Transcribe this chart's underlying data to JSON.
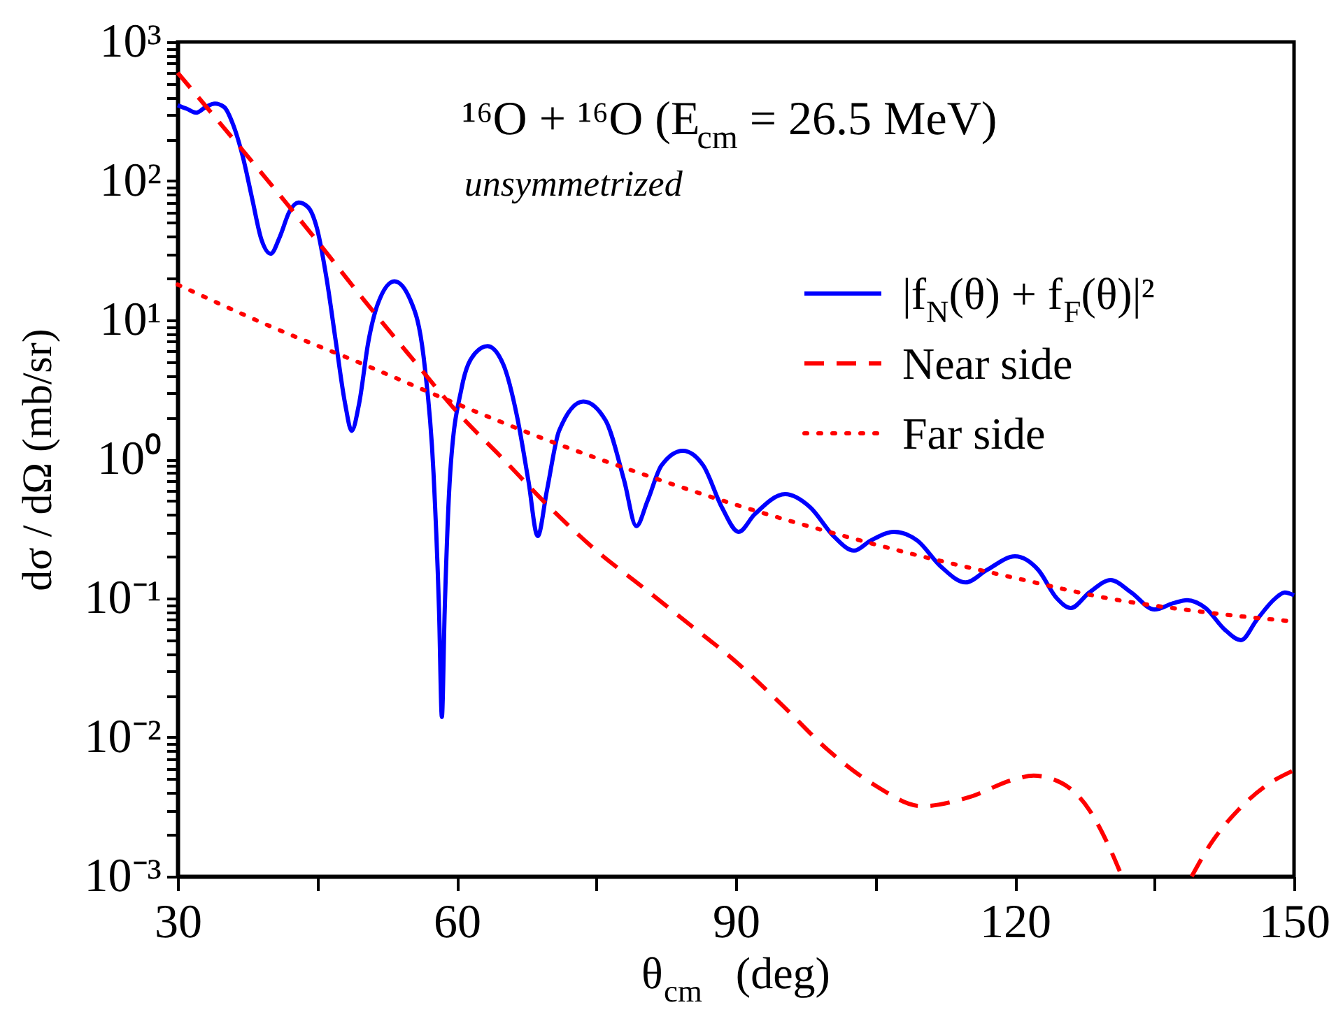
{
  "chart_data": {
    "type": "line",
    "title": "¹⁶O + ¹⁶O   (E$_{cm}$ = 26.5 MeV)",
    "xlabel": "θ$_{cm}$   (deg)",
    "ylabel": "dσ / dΩ   (mb/sr)",
    "annotations": [
      "unsymmetrized"
    ],
    "log": "y",
    "grid": false,
    "legend": "top right",
    "marker": "none",
    "xlim": [
      30,
      150
    ],
    "ylim": [
      0.001,
      1000
    ],
    "xticks": [
      30,
      {
        "value": 45,
        "label": null
      },
      60,
      {
        "value": 75,
        "label": null
      },
      90,
      {
        "value": 105,
        "label": null
      },
      120,
      {
        "value": 135,
        "label": null
      },
      150
    ],
    "yticks": [
      {
        "value": 0.001,
        "label": "10⁻³"
      },
      {
        "value": 0.002,
        "label": null
      },
      {
        "value": 0.003,
        "label": null
      },
      {
        "value": 0.004,
        "label": null
      },
      {
        "value": 0.005,
        "label": null
      },
      {
        "value": 0.006,
        "label": null
      },
      {
        "value": 0.007,
        "label": null
      },
      {
        "value": 0.008,
        "label": null
      },
      {
        "value": 0.009,
        "label": null
      },
      {
        "value": 0.01,
        "label": "10⁻²"
      },
      {
        "value": 0.02,
        "label": null
      },
      {
        "value": 0.03,
        "label": null
      },
      {
        "value": 0.04,
        "label": null
      },
      {
        "value": 0.05,
        "label": null
      },
      {
        "value": 0.06,
        "label": null
      },
      {
        "value": 0.07,
        "label": null
      },
      {
        "value": 0.08,
        "label": null
      },
      {
        "value": 0.09,
        "label": null
      },
      {
        "value": 0.1,
        "label": "10⁻¹"
      },
      {
        "value": 0.2,
        "label": null
      },
      {
        "value": 0.3,
        "label": null
      },
      {
        "value": 0.4,
        "label": null
      },
      {
        "value": 0.5,
        "label": null
      },
      {
        "value": 0.6,
        "label": null
      },
      {
        "value": 0.7,
        "label": null
      },
      {
        "value": 0.8,
        "label": null
      },
      {
        "value": 0.9,
        "label": null
      },
      {
        "value": 1,
        "label": "10⁰"
      },
      {
        "value": 2,
        "label": null
      },
      {
        "value": 3,
        "label": null
      },
      {
        "value": 4,
        "label": null
      },
      {
        "value": 5,
        "label": null
      },
      {
        "value": 6,
        "label": null
      },
      {
        "value": 7,
        "label": null
      },
      {
        "value": 8,
        "label": null
      },
      {
        "value": 9,
        "label": null
      },
      {
        "value": 10,
        "label": "10¹"
      },
      {
        "value": 20,
        "label": null
      },
      {
        "value": 30,
        "label": null
      },
      {
        "value": 40,
        "label": null
      },
      {
        "value": 50,
        "label": null
      },
      {
        "value": 60,
        "label": null
      },
      {
        "value": 70,
        "label": null
      },
      {
        "value": 80,
        "label": null
      },
      {
        "value": 90,
        "label": null
      },
      {
        "value": 100,
        "label": "10²"
      },
      {
        "value": 200,
        "label": null
      },
      {
        "value": 300,
        "label": null
      },
      {
        "value": 400,
        "label": null
      },
      {
        "value": 500,
        "label": null
      },
      {
        "value": 600,
        "label": null
      },
      {
        "value": 700,
        "label": null
      },
      {
        "value": 800,
        "label": null
      },
      {
        "value": 900,
        "label": null
      },
      {
        "value": 1000,
        "label": "10³"
      }
    ],
    "series": [
      {
        "name": "|f$_{N}$(θ) + f$_{F}$(θ)|²",
        "color": "#0000ff",
        "line_style": "solid",
        "x": [
          30,
          31,
          32,
          33,
          34,
          35,
          36,
          37,
          38,
          39,
          40,
          41,
          42,
          43,
          44,
          45,
          46,
          47,
          48,
          48.7,
          49.5,
          50.5,
          51.5,
          53.3,
          55,
          56.5,
          57.5,
          58.1,
          58.4,
          58.7,
          59.3,
          60.5,
          62,
          63.3,
          65,
          66.5,
          67.7,
          68.7,
          69.7,
          71,
          73.6,
          76,
          78,
          79.3,
          80.5,
          82,
          84.3,
          86.5,
          88.5,
          90.3,
          92,
          95.3,
          98,
          100.5,
          102.7,
          104.5,
          107,
          109.5,
          112,
          114.7,
          117,
          120,
          122.5,
          124.5,
          126,
          128,
          130.3,
          132.5,
          135,
          137,
          138.5,
          140.5,
          142.5,
          144.3,
          146,
          148,
          149,
          150
        ],
        "values": [
          350,
          330,
          310,
          340,
          360,
          340,
          250,
          150,
          75,
          38,
          30,
          40,
          60,
          70,
          65,
          45,
          20,
          7,
          2.5,
          1.6,
          2.5,
          7,
          13,
          19,
          14,
          5,
          0.8,
          0.08,
          0.014,
          0.08,
          0.8,
          3.2,
          5.8,
          6.5,
          4.8,
          2,
          0.7,
          0.28,
          0.6,
          1.6,
          2.6,
          1.9,
          0.7,
          0.33,
          0.5,
          0.9,
          1.15,
          0.9,
          0.45,
          0.3,
          0.4,
          0.56,
          0.45,
          0.28,
          0.22,
          0.26,
          0.3,
          0.26,
          0.17,
          0.13,
          0.16,
          0.2,
          0.16,
          0.1,
          0.085,
          0.11,
          0.135,
          0.11,
          0.083,
          0.092,
          0.097,
          0.085,
          0.06,
          0.05,
          0.07,
          0.1,
          0.11,
          0.105
        ]
      },
      {
        "name": "Near side",
        "color": "#ff0000",
        "line_style": "dashed",
        "x": [
          30,
          35,
          40,
          45,
          50,
          55,
          60,
          65,
          70,
          75,
          80,
          85,
          90,
          95,
          100,
          105,
          110,
          115,
          120,
          122,
          125,
          128,
          130,
          131.5,
          135,
          139,
          141,
          144,
          147,
          150
        ],
        "values": [
          600,
          240,
          95,
          37,
          14,
          5.5,
          2.2,
          1.0,
          0.45,
          0.22,
          0.12,
          0.065,
          0.035,
          0.017,
          0.008,
          0.0045,
          0.0032,
          0.0037,
          0.005,
          0.0053,
          0.0047,
          0.003,
          0.0017,
          0.001,
          null,
          0.001,
          0.0017,
          0.003,
          0.0045,
          0.0058
        ]
      },
      {
        "name": "Far side",
        "color": "#ff0000",
        "line_style": "dotted",
        "x": [
          30,
          40,
          50,
          60,
          70,
          80,
          90,
          100,
          110,
          120,
          130,
          140,
          150
        ],
        "values": [
          18,
          9,
          4.8,
          2.5,
          1.35,
          0.78,
          0.47,
          0.3,
          0.2,
          0.14,
          0.1,
          0.08,
          0.068
        ]
      }
    ]
  }
}
